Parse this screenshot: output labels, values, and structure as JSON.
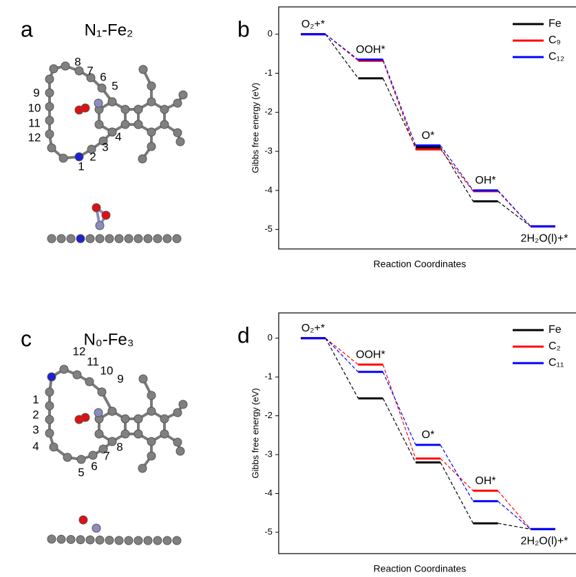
{
  "panels": [
    {
      "letter": "a",
      "title": "N₁-Fe₂",
      "atom_labels": [
        "1",
        "2",
        "3",
        "4",
        "5",
        "6",
        "7",
        "8",
        "9",
        "10",
        "11",
        "12"
      ]
    },
    {
      "letter": "c",
      "title": "N₀-Fe₃",
      "atom_labels": [
        "1",
        "2",
        "3",
        "4",
        "5",
        "6",
        "7",
        "8",
        "9",
        "10",
        "11",
        "12"
      ]
    }
  ],
  "chart_data": [
    {
      "type": "energy_levels",
      "letter": "b",
      "ylabel": "Gibbs free energy (eV)",
      "xlabel": "Reaction Coordinates",
      "categories": [
        "O₂+*",
        "OOH*",
        "O*",
        "OH*",
        "2H₂O(l)+*"
      ],
      "series": [
        {
          "name": "Fe",
          "color": "#000000",
          "values": [
            0,
            -1.13,
            -2.9,
            -4.28,
            -4.92
          ]
        },
        {
          "name": "C₉",
          "color": "#ff0000",
          "values": [
            0,
            -0.68,
            -2.95,
            -4.02,
            -4.92
          ]
        },
        {
          "name": "C₁₂",
          "color": "#0000ff",
          "values": [
            0,
            -0.65,
            -2.85,
            -4.0,
            -4.92
          ]
        }
      ],
      "ylim": [
        -5.5,
        0.7
      ],
      "yticks": [
        0,
        -1,
        -2,
        -3,
        -4,
        -5
      ],
      "legend": "upper right"
    },
    {
      "type": "energy_levels",
      "letter": "d",
      "ylabel": "Gibbs free energy (eV)",
      "xlabel": "Reaction Coordinates",
      "categories": [
        "O₂+*",
        "OOH*",
        "O*",
        "OH*",
        "2H₂O(l)+*"
      ],
      "series": [
        {
          "name": "Fe",
          "color": "#000000",
          "values": [
            0,
            -1.55,
            -3.2,
            -4.77,
            -4.92
          ]
        },
        {
          "name": "C₂",
          "color": "#ff0000",
          "values": [
            0,
            -0.68,
            -3.1,
            -3.93,
            -4.92
          ]
        },
        {
          "name": "C₁₁",
          "color": "#0000ff",
          "values": [
            0,
            -0.87,
            -2.75,
            -4.2,
            -4.92
          ]
        }
      ],
      "ylim": [
        -5.55,
        0.65
      ],
      "yticks": [
        0,
        -1,
        -2,
        -3,
        -4,
        -5
      ],
      "legend": "upper right"
    }
  ]
}
